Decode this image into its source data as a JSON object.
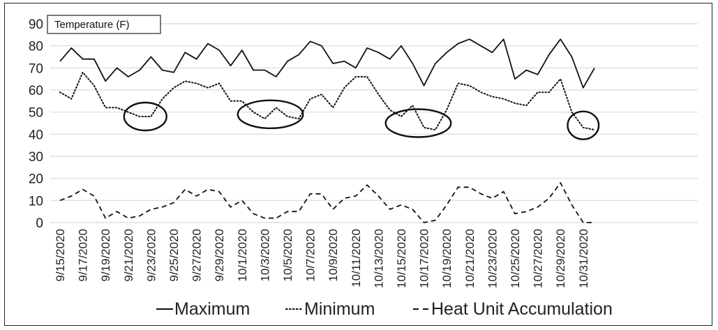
{
  "chart_data": {
    "type": "line",
    "title": "Temperature (F)",
    "xlabel": "",
    "ylabel": "",
    "ylim": [
      0,
      90
    ],
    "yticks": [
      0,
      10,
      20,
      30,
      40,
      50,
      60,
      70,
      80,
      90
    ],
    "grid": true,
    "legend_position": "bottom",
    "x": [
      "9/15/2020",
      "9/16/2020",
      "9/17/2020",
      "9/18/2020",
      "9/19/2020",
      "9/20/2020",
      "9/21/2020",
      "9/22/2020",
      "9/23/2020",
      "9/24/2020",
      "9/25/2020",
      "9/26/2020",
      "9/27/2020",
      "9/28/2020",
      "9/29/2020",
      "9/30/2020",
      "10/1/2020",
      "10/2/2020",
      "10/3/2020",
      "10/4/2020",
      "10/5/2020",
      "10/6/2020",
      "10/7/2020",
      "10/8/2020",
      "10/9/2020",
      "10/10/2020",
      "10/11/2020",
      "10/12/2020",
      "10/13/2020",
      "10/14/2020",
      "10/15/2020",
      "10/16/2020",
      "10/17/2020",
      "10/18/2020",
      "10/19/2020",
      "10/20/2020",
      "10/21/2020",
      "10/22/2020",
      "10/23/2020",
      "10/24/2020",
      "10/25/2020",
      "10/26/2020",
      "10/27/2020",
      "10/28/2020",
      "10/29/2020",
      "10/30/2020",
      "10/31/2020",
      "11/1/2020"
    ],
    "x_tick_labels": [
      "9/15/2020",
      "9/17/2020",
      "9/19/2020",
      "9/21/2020",
      "9/23/2020",
      "9/25/2020",
      "9/27/2020",
      "9/29/2020",
      "10/1/2020",
      "10/3/2020",
      "10/5/2020",
      "10/7/2020",
      "10/9/2020",
      "10/11/2020",
      "10/13/2020",
      "10/15/2020",
      "10/17/2020",
      "10/19/2020",
      "10/21/2020",
      "10/23/2020",
      "10/25/2020",
      "10/27/2020",
      "10/29/2020",
      "10/31/2020"
    ],
    "series": [
      {
        "name": "Maximum",
        "style": "solid",
        "color": "#111111",
        "values": [
          73,
          79,
          74,
          74,
          64,
          70,
          66,
          69,
          75,
          69,
          68,
          77,
          74,
          81,
          78,
          71,
          78,
          69,
          69,
          66,
          73,
          76,
          82,
          80,
          72,
          73,
          70,
          79,
          77,
          74,
          80,
          72,
          62,
          72,
          77,
          81,
          83,
          80,
          77,
          83,
          65,
          69,
          67,
          76,
          83,
          75,
          61,
          70
        ]
      },
      {
        "name": "Minimum",
        "style": "dotted",
        "color": "#111111",
        "values": [
          59,
          56,
          68,
          62,
          52,
          52,
          50,
          48,
          48,
          56,
          61,
          64,
          63,
          61,
          63,
          55,
          55,
          50,
          47,
          52,
          48,
          47,
          56,
          58,
          52,
          61,
          66,
          66,
          58,
          51,
          48,
          53,
          43,
          42,
          51,
          63,
          62,
          59,
          57,
          56,
          54,
          53,
          59,
          59,
          65,
          50,
          43,
          42
        ]
      },
      {
        "name": "Heat Unit Accumulation",
        "style": "dashed",
        "color": "#111111",
        "values": [
          10,
          12,
          15,
          12,
          2,
          5,
          2,
          3,
          6,
          7,
          9,
          15,
          12,
          15,
          14,
          7,
          10,
          4,
          2,
          2,
          5,
          5,
          13,
          13,
          6,
          11,
          12,
          17,
          12,
          6,
          8,
          6,
          0,
          1,
          8,
          16,
          16,
          13,
          11,
          14,
          4,
          5,
          7,
          11,
          18,
          8,
          0,
          0
        ]
      }
    ],
    "annotations": [
      {
        "type": "ellipse",
        "x_start": "9/21/2020",
        "x_end": "9/24/2020",
        "y_center": 48
      },
      {
        "type": "ellipse",
        "x_start": "10/1/2020",
        "x_end": "10/6/2020",
        "y_center": 49
      },
      {
        "type": "ellipse",
        "x_start": "10/14/2020",
        "x_end": "10/19/2020",
        "y_center": 45
      },
      {
        "type": "ellipse",
        "x_start": "10/30/2020",
        "x_end": "11/1/2020",
        "y_center": 44
      }
    ]
  }
}
